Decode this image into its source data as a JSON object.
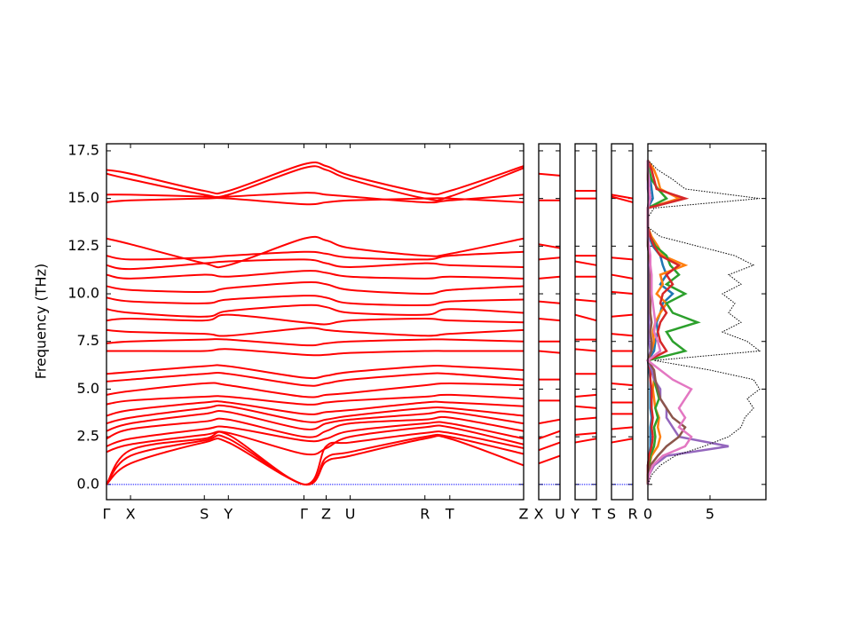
{
  "chart_data": [
    {
      "type": "line",
      "ylabel": "Frequency (THz)",
      "color": "#ff0000",
      "x": [
        0,
        27,
        110,
        137,
        222,
        247,
        274,
        358,
        386,
        469
      ],
      "xlim": [
        0,
        469
      ],
      "xticks": [
        {
          "value": 0,
          "label": "Γ"
        },
        {
          "value": 27,
          "label": "X"
        },
        {
          "value": 110,
          "label": "S"
        },
        {
          "value": 137,
          "label": "Y"
        },
        {
          "value": 222,
          "label": "Γ"
        },
        {
          "value": 247,
          "label": "Z"
        },
        {
          "value": 274,
          "label": "U"
        },
        {
          "value": 358,
          "label": "R"
        },
        {
          "value": 386,
          "label": "T"
        },
        {
          "value": 469,
          "label": "Z"
        }
      ],
      "ylim": [
        -0.8,
        17.87
      ],
      "yticks": [
        {
          "value": 0,
          "label": "0.0"
        },
        2.5,
        {
          "value": 5,
          "label": "5.0"
        },
        7.5,
        {
          "value": 10,
          "label": "10.0"
        },
        12.5,
        {
          "value": 15,
          "label": "15.0"
        },
        17.5
      ],
      "series": [
        {
          "values": [
            0,
            1.1,
            2.2,
            2.2,
            0,
            1.2,
            1.5,
            2.4,
            2.4,
            1.0
          ]
        },
        {
          "values": [
            0,
            1.5,
            2.3,
            2.4,
            0,
            1.4,
            1.7,
            2.5,
            2.5,
            1.6
          ]
        },
        {
          "values": [
            0,
            1.8,
            2.4,
            2.6,
            0,
            2.0,
            2.2,
            2.7,
            2.7,
            1.9
          ]
        },
        {
          "values": [
            1.7,
            2.1,
            2.6,
            2.7,
            1.6,
            1.9,
            2.5,
            3.0,
            3.0,
            2.1
          ]
        },
        {
          "values": [
            2.0,
            2.4,
            2.9,
            3.0,
            2.3,
            2.4,
            2.8,
            3.2,
            3.2,
            2.4
          ]
        },
        {
          "values": [
            2.4,
            2.9,
            3.3,
            3.4,
            2.5,
            2.8,
            3.2,
            3.4,
            3.5,
            2.8
          ]
        },
        {
          "values": [
            2.8,
            3.2,
            3.7,
            3.8,
            2.9,
            3.2,
            3.4,
            3.7,
            3.8,
            3.2
          ]
        },
        {
          "values": [
            3.2,
            3.5,
            4.0,
            4.1,
            3.3,
            3.4,
            3.6,
            4.0,
            4.0,
            3.6
          ]
        },
        {
          "values": [
            3.6,
            3.9,
            4.3,
            4.3,
            3.7,
            3.8,
            3.9,
            4.3,
            4.3,
            4.1
          ]
        },
        {
          "values": [
            4.2,
            4.4,
            4.6,
            4.6,
            4.2,
            4.3,
            4.4,
            4.6,
            4.7,
            4.5
          ]
        },
        {
          "values": [
            4.7,
            4.9,
            5.3,
            5.2,
            4.6,
            4.7,
            4.8,
            5.2,
            5.3,
            5.2
          ]
        },
        {
          "values": [
            5.4,
            5.5,
            5.8,
            5.8,
            5.2,
            5.3,
            5.5,
            5.8,
            5.8,
            5.5
          ]
        },
        {
          "values": [
            5.8,
            5.9,
            6.2,
            6.2,
            5.6,
            5.7,
            5.9,
            6.2,
            6.2,
            6.0
          ]
        },
        {
          "values": [
            7.0,
            7.0,
            7.0,
            7.1,
            6.8,
            6.8,
            6.9,
            7.0,
            7.0,
            7.0
          ]
        },
        {
          "values": [
            7.4,
            7.5,
            7.6,
            7.6,
            7.3,
            7.4,
            7.5,
            7.6,
            7.6,
            7.5
          ]
        },
        {
          "values": [
            8.1,
            8.0,
            7.9,
            7.8,
            8.2,
            8.1,
            8.0,
            7.8,
            7.9,
            8.1
          ]
        },
        {
          "values": [
            8.6,
            8.7,
            8.6,
            8.9,
            8.5,
            8.4,
            8.6,
            8.7,
            8.6,
            8.5
          ]
        },
        {
          "values": [
            9.2,
            9.0,
            8.8,
            9.1,
            9.4,
            9.3,
            9.0,
            8.9,
            9.2,
            9.0
          ]
        },
        {
          "values": [
            9.8,
            9.6,
            9.5,
            9.7,
            9.9,
            9.8,
            9.5,
            9.4,
            9.6,
            9.7
          ]
        },
        {
          "values": [
            10.4,
            10.2,
            10.1,
            10.3,
            10.6,
            10.5,
            10.2,
            10.0,
            10.2,
            10.4
          ]
        },
        {
          "values": [
            11.0,
            10.8,
            11.0,
            10.9,
            11.2,
            11.1,
            10.9,
            10.8,
            10.9,
            10.8
          ]
        },
        {
          "values": [
            11.5,
            11.3,
            11.6,
            11.7,
            11.8,
            11.6,
            11.4,
            11.6,
            11.5,
            11.4
          ]
        },
        {
          "values": [
            12.0,
            11.8,
            11.9,
            12.0,
            12.2,
            12.1,
            11.9,
            11.8,
            12.0,
            12.2
          ]
        },
        {
          "values": [
            12.9,
            12.6,
            11.6,
            11.5,
            12.9,
            12.8,
            12.4,
            12.0,
            12.1,
            12.9
          ]
        },
        {
          "values": [
            14.8,
            14.9,
            15.0,
            15.0,
            14.7,
            14.8,
            14.9,
            15.0,
            15.0,
            14.8
          ]
        },
        {
          "values": [
            15.2,
            15.2,
            15.1,
            15.1,
            15.3,
            15.2,
            15.1,
            14.8,
            14.9,
            15.2
          ]
        },
        {
          "values": [
            16.3,
            16.0,
            15.2,
            15.2,
            16.6,
            16.5,
            16.0,
            15.0,
            15.1,
            16.6
          ]
        },
        {
          "values": [
            16.5,
            16.3,
            15.4,
            15.4,
            16.8,
            16.7,
            16.2,
            15.3,
            15.4,
            16.7
          ]
        }
      ]
    },
    {
      "type": "line",
      "color": "#ff0000",
      "x": [
        0,
        1
      ],
      "xlim": [
        0,
        1
      ],
      "xticks": [
        {
          "value": 0,
          "label": "X"
        },
        {
          "value": 1,
          "label": "U"
        }
      ],
      "series": [
        {
          "values": [
            1.1,
            1.5
          ]
        },
        {
          "values": [
            1.8,
            2.2
          ]
        },
        {
          "values": [
            2.4,
            2.8
          ]
        },
        {
          "values": [
            3.2,
            3.4
          ]
        },
        {
          "values": [
            4.4,
            4.4
          ]
        },
        {
          "values": [
            5.5,
            5.5
          ]
        },
        {
          "values": [
            7.0,
            6.9
          ]
        },
        {
          "values": [
            7.5,
            7.5
          ]
        },
        {
          "values": [
            8.7,
            8.6
          ]
        },
        {
          "values": [
            9.6,
            9.5
          ]
        },
        {
          "values": [
            10.8,
            10.9
          ]
        },
        {
          "values": [
            11.8,
            11.9
          ]
        },
        {
          "values": [
            12.6,
            12.4
          ]
        },
        {
          "values": [
            14.9,
            14.9
          ]
        },
        {
          "values": [
            16.3,
            16.2
          ]
        }
      ]
    },
    {
      "type": "line",
      "color": "#ff0000",
      "x": [
        0,
        1
      ],
      "xlim": [
        0,
        1
      ],
      "xticks": [
        {
          "value": 0,
          "label": "Y"
        },
        {
          "value": 1,
          "label": "T"
        }
      ],
      "series": [
        {
          "values": [
            2.2,
            2.4
          ]
        },
        {
          "values": [
            2.6,
            2.7
          ]
        },
        {
          "values": [
            3.4,
            3.5
          ]
        },
        {
          "values": [
            4.1,
            4.0
          ]
        },
        {
          "values": [
            4.6,
            4.7
          ]
        },
        {
          "values": [
            5.8,
            5.8
          ]
        },
        {
          "values": [
            7.1,
            7.0
          ]
        },
        {
          "values": [
            7.6,
            7.6
          ]
        },
        {
          "values": [
            8.9,
            8.6
          ]
        },
        {
          "values": [
            9.7,
            9.6
          ]
        },
        {
          "values": [
            10.9,
            10.9
          ]
        },
        {
          "values": [
            11.7,
            11.5
          ]
        },
        {
          "values": [
            12.0,
            12.0
          ]
        },
        {
          "values": [
            15.0,
            15.0
          ]
        },
        {
          "values": [
            15.4,
            15.4
          ]
        }
      ]
    },
    {
      "type": "line",
      "color": "#ff0000",
      "x": [
        0,
        1
      ],
      "xlim": [
        0,
        1
      ],
      "xticks": [
        {
          "value": 0,
          "label": "S"
        },
        {
          "value": 1,
          "label": "R"
        }
      ],
      "series": [
        {
          "values": [
            2.2,
            2.4
          ]
        },
        {
          "values": [
            2.9,
            3.0
          ]
        },
        {
          "values": [
            3.7,
            3.7
          ]
        },
        {
          "values": [
            4.3,
            4.3
          ]
        },
        {
          "values": [
            5.3,
            5.2
          ]
        },
        {
          "values": [
            6.2,
            6.2
          ]
        },
        {
          "values": [
            7.0,
            7.0
          ]
        },
        {
          "values": [
            7.9,
            7.8
          ]
        },
        {
          "values": [
            8.8,
            8.9
          ]
        },
        {
          "values": [
            10.1,
            10.0
          ]
        },
        {
          "values": [
            11.0,
            10.8
          ]
        },
        {
          "values": [
            11.9,
            11.8
          ]
        },
        {
          "values": [
            15.1,
            14.8
          ]
        },
        {
          "values": [
            15.2,
            15.0
          ]
        }
      ]
    },
    {
      "type": "dos",
      "xlim": [
        0,
        9.5
      ],
      "xticks": [
        0,
        5
      ],
      "y": [
        0,
        0.5,
        1,
        1.5,
        2,
        2.5,
        3,
        3.5,
        4,
        4.5,
        5,
        5.5,
        6,
        6.5,
        7,
        7.5,
        8,
        8.5,
        9,
        9.5,
        10,
        10.5,
        11,
        11.5,
        12,
        12.5,
        13,
        13.5,
        14,
        14.5,
        15,
        15.5,
        16,
        16.5,
        17
      ],
      "series": [
        {
          "color": "#1f77b4",
          "values": [
            0,
            0,
            0,
            0.1,
            0.2,
            0.2,
            0.2,
            0.3,
            0.2,
            0.2,
            0.2,
            0.2,
            0.1,
            0,
            0.5,
            0.6,
            0.8,
            0.7,
            1.0,
            1.2,
            2.0,
            1.0,
            1.5,
            1.2,
            1.0,
            0.4,
            0.1,
            0,
            0,
            0,
            0.4,
            0.3,
            0.2,
            0.1,
            0
          ]
        },
        {
          "color": "#ff7f0e",
          "values": [
            0,
            0,
            0.1,
            0.3,
            0.8,
            1.0,
            0.8,
            0.9,
            0.6,
            0.5,
            0.4,
            0.5,
            0.3,
            0,
            0.3,
            0.5,
            0.4,
            0.6,
            1.0,
            1.5,
            0.7,
            1.2,
            1.0,
            3.0,
            1.2,
            0.8,
            0.3,
            0,
            0,
            0,
            2.5,
            1.0,
            0.8,
            0.5,
            0
          ]
        },
        {
          "color": "#2ca02c",
          "values": [
            0,
            0,
            0.1,
            0.2,
            0.5,
            0.6,
            0.5,
            0.8,
            0.6,
            0.9,
            0.7,
            0.5,
            0.3,
            0,
            3.0,
            2.0,
            1.5,
            4.0,
            2.0,
            1.5,
            3.0,
            1.5,
            2.5,
            1.8,
            1.5,
            0.6,
            0.2,
            0,
            0,
            0,
            1.5,
            0.8,
            0.3,
            0.1,
            0
          ]
        },
        {
          "color": "#d62728",
          "values": [
            0,
            0,
            0,
            0.1,
            0.3,
            0.4,
            0.3,
            0.4,
            0.3,
            0.3,
            0.3,
            0.2,
            0.2,
            0,
            1.5,
            1.0,
            0.8,
            1.0,
            1.5,
            1.0,
            1.2,
            2.0,
            1.5,
            2.5,
            1.0,
            0.5,
            0.2,
            0,
            0,
            0,
            3.0,
            0.7,
            0.5,
            0.3,
            0
          ]
        },
        {
          "color": "#9467bd",
          "values": [
            0,
            0.1,
            0.5,
            1.5,
            6.5,
            2.5,
            2.0,
            1.5,
            1.5,
            1.0,
            1.0,
            0.5,
            0.3,
            0,
            0.2,
            0.1,
            0.1,
            0.1,
            0.1,
            0.1,
            0.1,
            0.1,
            0.1,
            0.1,
            0.1,
            0,
            0,
            0,
            0,
            0,
            0.1,
            0,
            0,
            0,
            0
          ]
        },
        {
          "color": "#8c564b",
          "values": [
            0,
            0,
            0.2,
            0.8,
            1.5,
            2.5,
            3.0,
            2.0,
            1.5,
            1.0,
            0.8,
            0.6,
            0.5,
            0,
            0.3,
            0.3,
            0.2,
            0.3,
            0.2,
            0.2,
            0.2,
            0.2,
            0.2,
            0.2,
            0.1,
            0,
            0,
            0,
            0,
            0,
            0.2,
            0.1,
            0,
            0,
            0
          ]
        },
        {
          "color": "#e377c2",
          "values": [
            0,
            0.1,
            0.4,
            1.2,
            3.0,
            3.5,
            2.5,
            3.0,
            2.5,
            3.0,
            3.5,
            2.0,
            1.0,
            0,
            1.0,
            0.8,
            0.5,
            0.6,
            0.5,
            0.4,
            0.3,
            0.3,
            0.3,
            0.2,
            0.2,
            0.1,
            0,
            0,
            0,
            0,
            0.2,
            0.1,
            0.1,
            0,
            0
          ]
        },
        {
          "color": "#000000",
          "dashed": true,
          "values": [
            0,
            0.3,
            1.0,
            2.2,
            4.5,
            6.5,
            7.5,
            7.8,
            8.5,
            8.0,
            9.0,
            8.5,
            5.0,
            0.5,
            9.0,
            8.0,
            6.0,
            7.5,
            6.5,
            7.0,
            6.0,
            7.5,
            6.5,
            8.5,
            7.0,
            4.0,
            1.0,
            0,
            0,
            0.5,
            9.0,
            3.0,
            2.0,
            0.8,
            0
          ]
        }
      ]
    }
  ]
}
